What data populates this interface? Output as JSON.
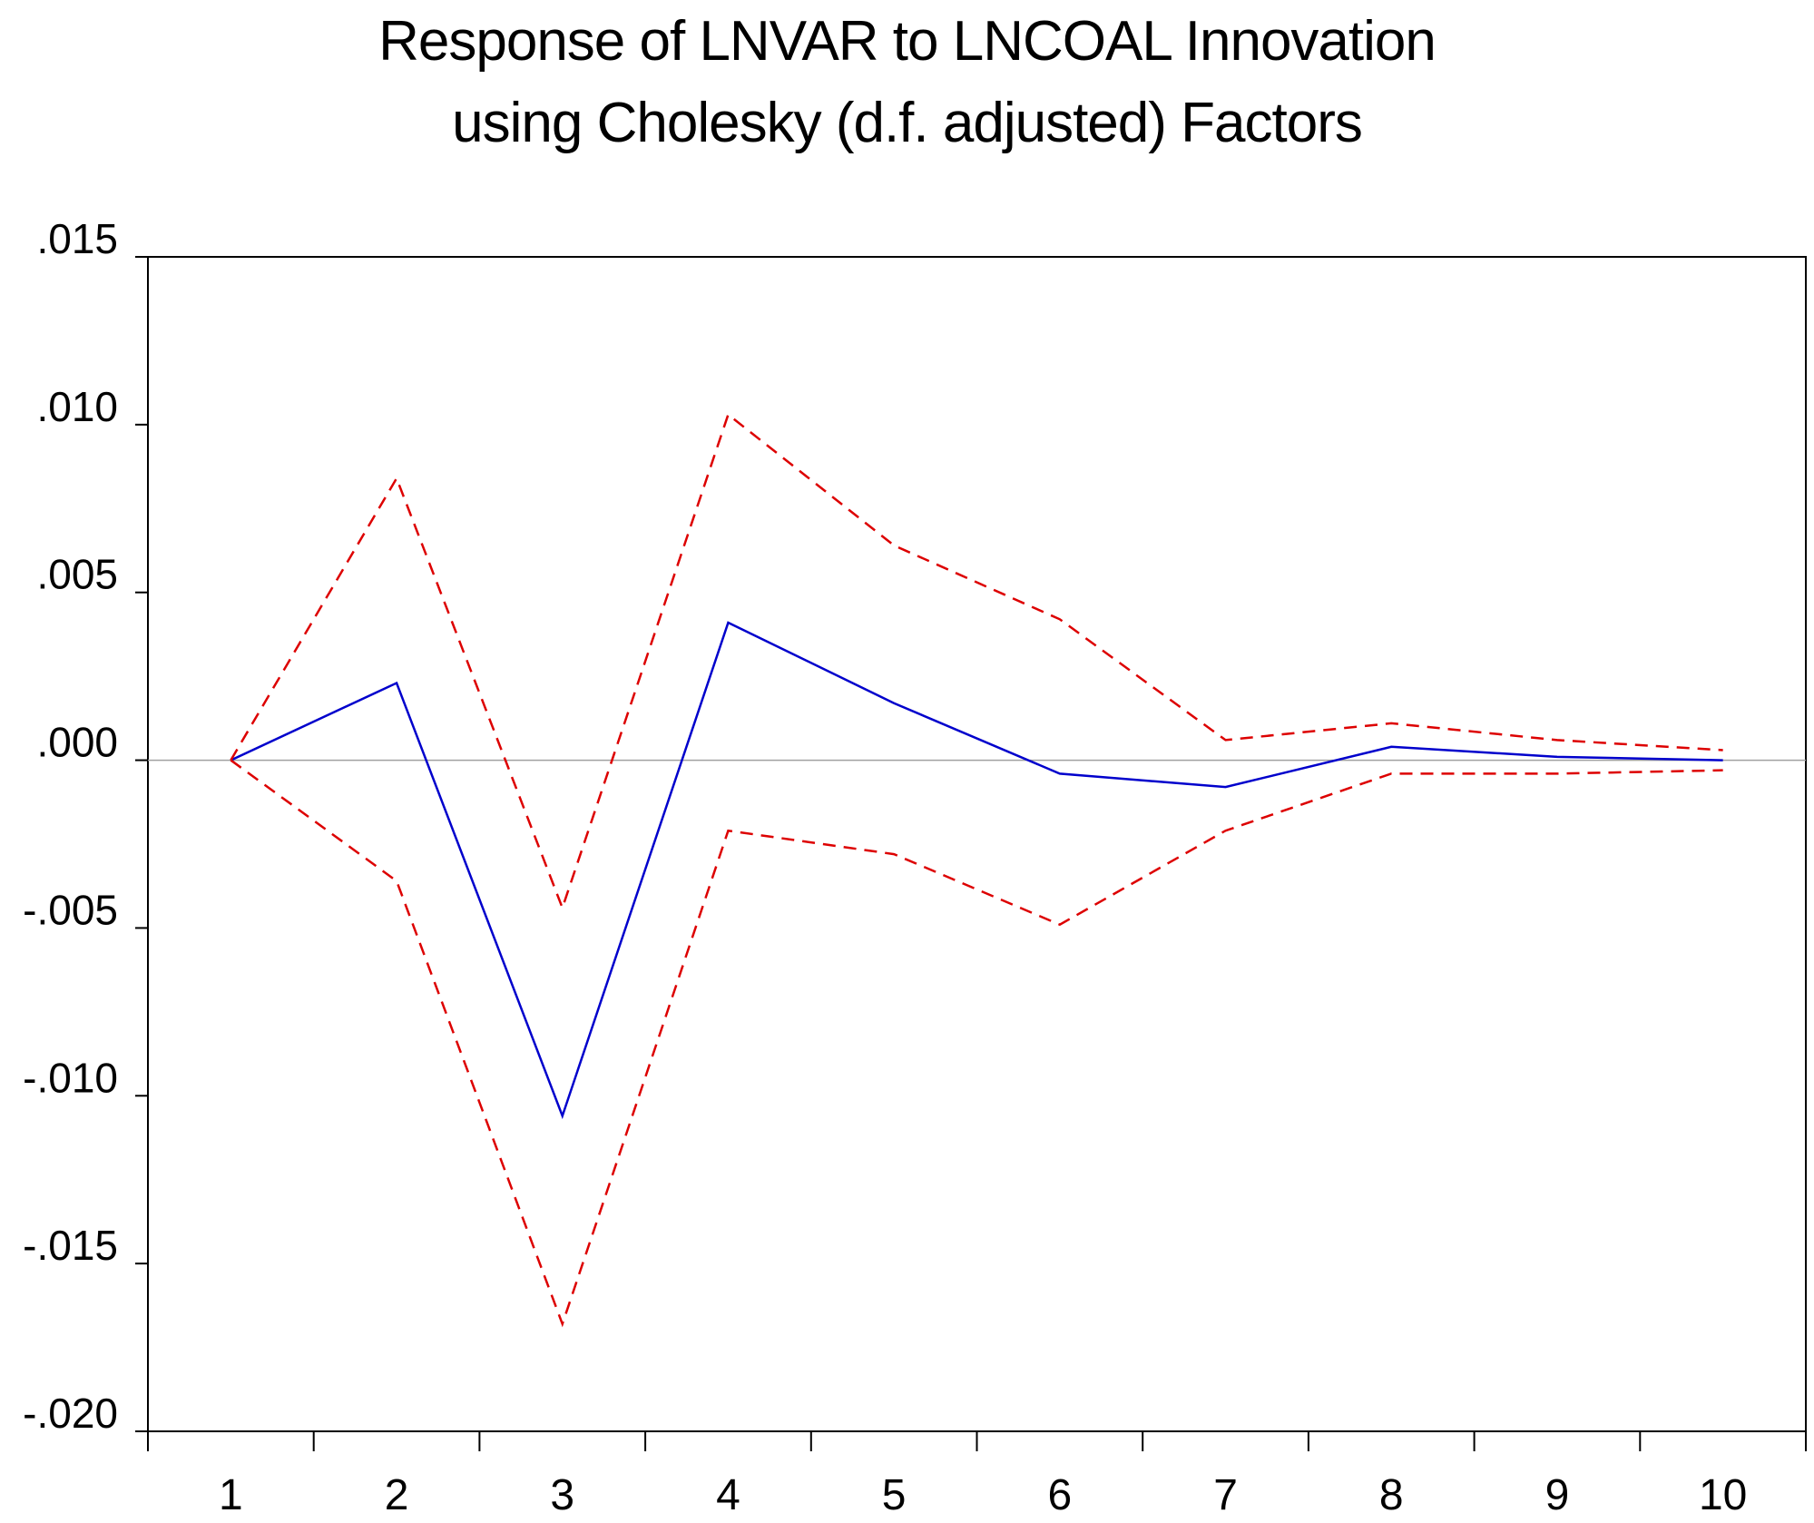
{
  "chart_data": {
    "type": "line",
    "title": "Response of LNVAR to LNCOAL Innovation",
    "subtitle": "using Cholesky (d.f. adjusted) Factors",
    "xlabel": "",
    "ylabel": "",
    "x": [
      1,
      2,
      3,
      4,
      5,
      6,
      7,
      8,
      9,
      10
    ],
    "xticklabels": [
      "1",
      "2",
      "3",
      "4",
      "5",
      "6",
      "7",
      "8",
      "9",
      "10"
    ],
    "ylim": [
      -0.02,
      0.015
    ],
    "yticks": [
      0.015,
      0.01,
      0.005,
      0.0,
      -0.005,
      -0.01,
      -0.015,
      -0.02
    ],
    "yticklabels": [
      ".015",
      ".010",
      ".005",
      ".000",
      "-.005",
      "-.010",
      "-.015",
      "-.020"
    ],
    "zero_line": true,
    "grid": false,
    "legend": "none",
    "series": [
      {
        "role": "response",
        "style": "solid",
        "color": "#0000cc",
        "values": [
          0.0,
          0.0023,
          -0.0106,
          0.0041,
          0.0017,
          -0.0004,
          -0.0008,
          0.0004,
          0.0001,
          0.0
        ]
      },
      {
        "role": "upper band",
        "style": "dashed",
        "color": "#dd0000",
        "values": [
          0.0,
          0.0084,
          -0.0044,
          0.0103,
          0.0064,
          0.0042,
          0.0006,
          0.0011,
          0.0006,
          0.0003
        ]
      },
      {
        "role": "lower band",
        "style": "dashed",
        "color": "#dd0000",
        "values": [
          0.0,
          -0.0036,
          -0.0168,
          -0.0021,
          -0.0028,
          -0.0049,
          -0.0021,
          -0.0004,
          -0.0004,
          -0.0003
        ]
      }
    ]
  }
}
